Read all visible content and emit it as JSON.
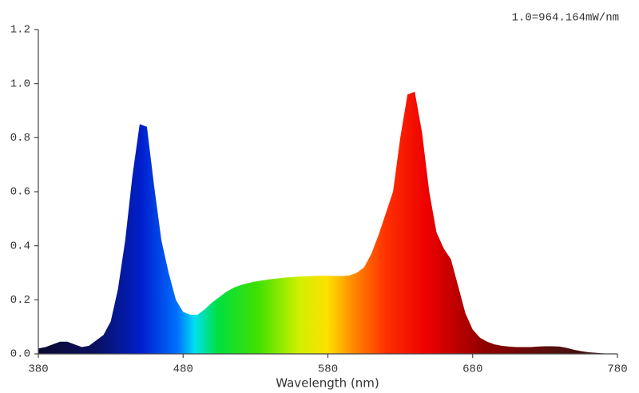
{
  "chart_data": {
    "type": "area",
    "annotation": "1.0=964.164mW/nm",
    "x_label": "Wavelength (nm)",
    "xlim": [
      380,
      780
    ],
    "ylim": [
      0,
      1.2
    ],
    "xticks": [
      380,
      480,
      580,
      680,
      780
    ],
    "yticks": [
      {
        "value": 0,
        "label": "0.0"
      },
      0.2,
      0.4,
      0.6,
      0.8,
      {
        "value": 1,
        "label": "1.0"
      },
      1.2
    ],
    "x": [
      380,
      385,
      390,
      395,
      400,
      405,
      410,
      415,
      420,
      425,
      430,
      435,
      440,
      445,
      450,
      455,
      460,
      465,
      470,
      475,
      480,
      485,
      490,
      495,
      500,
      505,
      510,
      515,
      520,
      525,
      530,
      535,
      540,
      545,
      550,
      555,
      560,
      565,
      570,
      575,
      580,
      585,
      590,
      595,
      600,
      605,
      610,
      615,
      620,
      625,
      630,
      635,
      640,
      645,
      650,
      655,
      660,
      665,
      670,
      675,
      680,
      685,
      690,
      695,
      700,
      705,
      710,
      715,
      720,
      725,
      730,
      735,
      740,
      745,
      750,
      755,
      760,
      765,
      770,
      775,
      780
    ],
    "values": [
      0.02,
      0.025,
      0.035,
      0.045,
      0.045,
      0.035,
      0.025,
      0.03,
      0.05,
      0.07,
      0.12,
      0.24,
      0.42,
      0.66,
      0.85,
      0.84,
      0.62,
      0.42,
      0.3,
      0.2,
      0.155,
      0.145,
      0.145,
      0.165,
      0.19,
      0.21,
      0.23,
      0.245,
      0.255,
      0.262,
      0.268,
      0.272,
      0.276,
      0.279,
      0.282,
      0.284,
      0.286,
      0.287,
      0.288,
      0.289,
      0.289,
      0.288,
      0.288,
      0.29,
      0.3,
      0.32,
      0.37,
      0.44,
      0.52,
      0.6,
      0.8,
      0.96,
      0.97,
      0.82,
      0.6,
      0.45,
      0.39,
      0.35,
      0.25,
      0.15,
      0.09,
      0.06,
      0.045,
      0.035,
      0.03,
      0.027,
      0.025,
      0.025,
      0.025,
      0.027,
      0.028,
      0.028,
      0.027,
      0.022,
      0.015,
      0.01,
      0.006,
      0.004,
      0.002,
      0.001,
      0
    ]
  }
}
